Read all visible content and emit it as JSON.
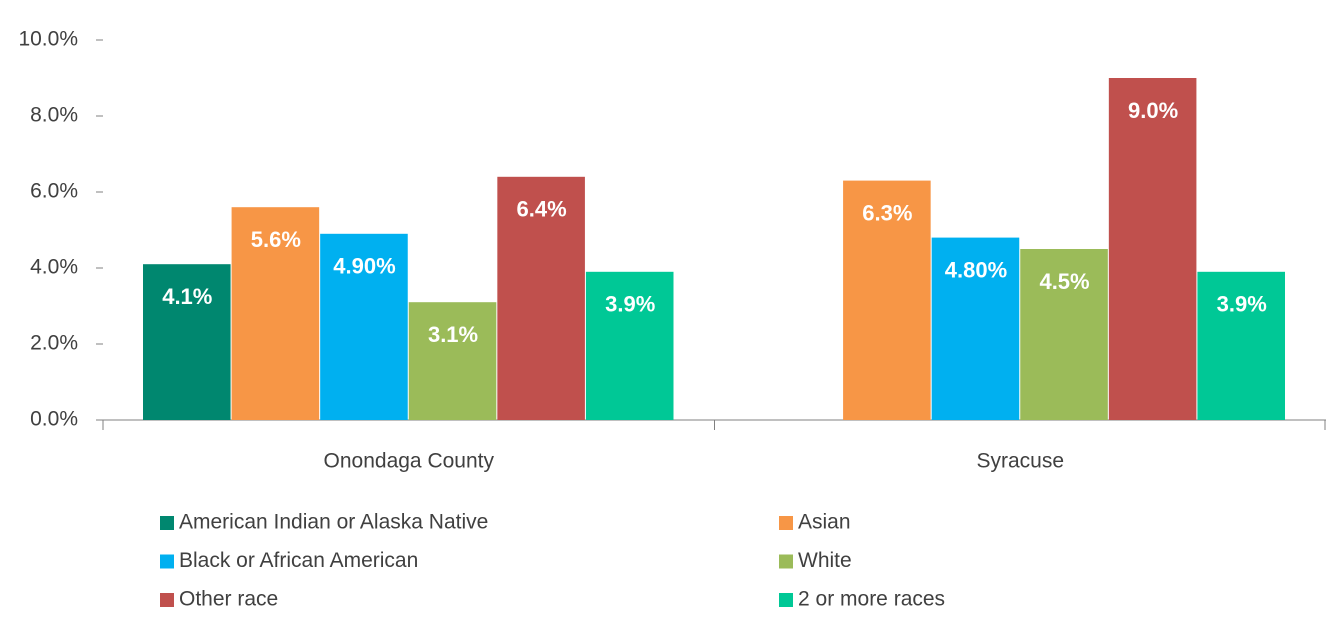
{
  "chart_data": {
    "type": "bar",
    "categories": [
      "Onondaga County",
      "Syracuse"
    ],
    "series": [
      {
        "name": "American Indian or Alaska Native",
        "color": "#00876f",
        "values": [
          4.1,
          null
        ],
        "value_labels": [
          "4.1%",
          null
        ]
      },
      {
        "name": "Asian",
        "color": "#f79646",
        "values": [
          5.6,
          6.3
        ],
        "value_labels": [
          "5.6%",
          "6.3%"
        ]
      },
      {
        "name": "Black or African American",
        "color": "#00b0f0",
        "values": [
          4.9,
          4.8
        ],
        "value_labels": [
          "4.90%",
          "4.80%"
        ]
      },
      {
        "name": "White",
        "color": "#9bbb59",
        "values": [
          3.1,
          4.5
        ],
        "value_labels": [
          "3.1%",
          "4.5%"
        ]
      },
      {
        "name": "Other race",
        "color": "#c0504d",
        "values": [
          6.4,
          9.0
        ],
        "value_labels": [
          "6.4%",
          "9.0%"
        ]
      },
      {
        "name": "2 or more races",
        "color": "#00c896",
        "values": [
          3.9,
          3.9
        ],
        "value_labels": [
          "3.9%",
          "3.9%"
        ]
      }
    ],
    "ylim": [
      0,
      10
    ],
    "yticks": [
      {
        "value": 0,
        "label": "0.0%"
      },
      {
        "value": 2,
        "label": "2.0%"
      },
      {
        "value": 4,
        "label": "4.0%"
      },
      {
        "value": 6,
        "label": "6.0%"
      },
      {
        "value": 8,
        "label": "8.0%"
      },
      {
        "value": 10,
        "label": "10.0%"
      }
    ],
    "grid": false
  }
}
